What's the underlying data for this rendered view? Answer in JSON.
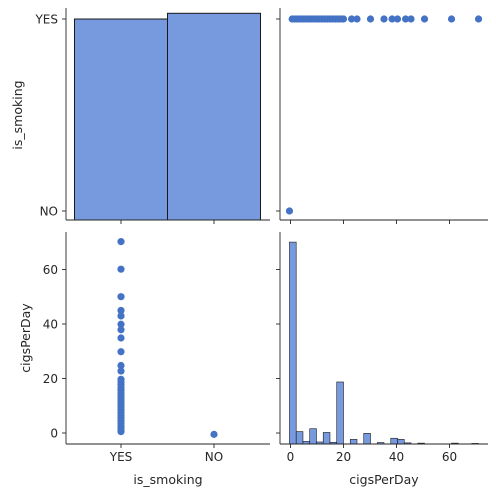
{
  "colors": {
    "bar": "#7799dd",
    "point": "#4472c4",
    "edge": "#1a1a1a"
  },
  "chart_data": [
    {
      "type": "bar",
      "panel": "is_smoking vs is_smoking (histogram)",
      "categories": [
        "YES",
        "NO"
      ],
      "values": [
        0.493,
        0.507
      ],
      "ylim": [
        0,
        0.52
      ]
    },
    {
      "type": "scatter",
      "panel": "is_smoking vs cigsPerDay",
      "xlim": [
        -3.5,
        73.5
      ],
      "x_ticks": [
        0,
        20,
        40,
        60
      ],
      "ycategories": [
        "YES",
        "NO"
      ],
      "points": {
        "YES": [
          1,
          2,
          3,
          4,
          5,
          6,
          7,
          8,
          9,
          10,
          11,
          12,
          13,
          14,
          15,
          16,
          17,
          18,
          19,
          20,
          23,
          25,
          30,
          35,
          38,
          40,
          43,
          45,
          50,
          60,
          70
        ],
        "NO": [
          0
        ]
      }
    },
    {
      "type": "scatter",
      "panel": "cigsPerDay vs is_smoking",
      "xcategories": [
        "YES",
        "NO"
      ],
      "ylim": [
        -3.5,
        73.5
      ],
      "y_ticks": [
        0,
        20,
        40,
        60
      ],
      "points": {
        "YES": [
          1,
          2,
          3,
          4,
          5,
          6,
          7,
          8,
          9,
          10,
          11,
          12,
          13,
          14,
          15,
          16,
          17,
          18,
          19,
          20,
          23,
          25,
          30,
          35,
          38,
          40,
          43,
          45,
          50,
          60,
          70
        ],
        "NO": [
          0
        ]
      }
    },
    {
      "type": "bar",
      "panel": "cigsPerDay vs cigsPerDay (histogram)",
      "xlim": [
        -3.5,
        73.5
      ],
      "x_ticks": [
        0,
        20,
        40,
        60
      ],
      "bin_width": 2.5,
      "bins": [
        {
          "start": 0,
          "value": 70
        },
        {
          "start": 2.5,
          "value": 4.3
        },
        {
          "start": 5,
          "value": 0.9
        },
        {
          "start": 7.5,
          "value": 5.3
        },
        {
          "start": 10,
          "value": 0.7
        },
        {
          "start": 12.5,
          "value": 4.0
        },
        {
          "start": 15,
          "value": 0.6
        },
        {
          "start": 17.5,
          "value": 21.5
        },
        {
          "start": 22.5,
          "value": 1.6
        },
        {
          "start": 27.5,
          "value": 3.7
        },
        {
          "start": 32.5,
          "value": 0.5
        },
        {
          "start": 37.5,
          "value": 2.0
        },
        {
          "start": 40,
          "value": 1.6
        },
        {
          "start": 42.5,
          "value": 0.4
        },
        {
          "start": 47.5,
          "value": 0.3
        },
        {
          "start": 60,
          "value": 0.3
        },
        {
          "start": 67.5,
          "value": 0.2
        }
      ],
      "ylim": [
        0,
        73.5
      ]
    }
  ],
  "axes": {
    "row0_ylabel": "is_smoking",
    "row1_ylabel": "cigsPerDay",
    "col0_xlabel": "is_smoking",
    "col1_xlabel": "cigsPerDay",
    "row0_yticks": [
      "YES",
      "NO"
    ],
    "row1_yticks": [
      "0",
      "20",
      "40",
      "60"
    ],
    "col0_xticks": [
      "YES",
      "NO"
    ],
    "col1_xticks": [
      "0",
      "20",
      "40",
      "60"
    ]
  }
}
